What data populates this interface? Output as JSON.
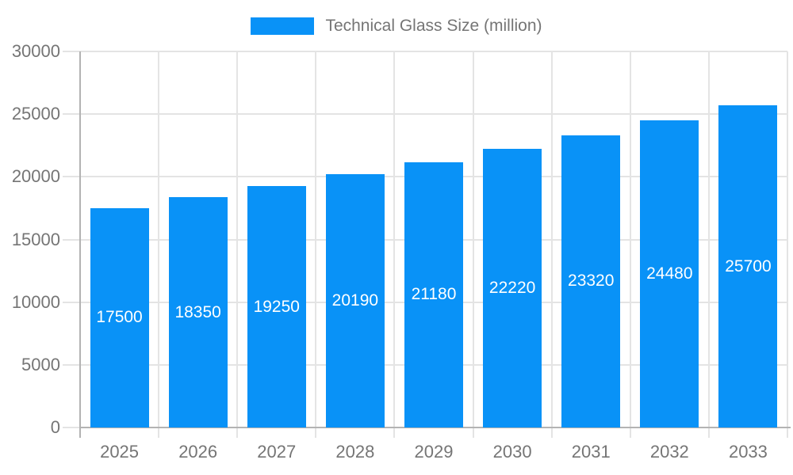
{
  "legend": {
    "label": "Technical Glass Size (million)"
  },
  "colors": {
    "bar": "#0992f7",
    "grid": "#e4e4e4",
    "axis": "#b3b3b3",
    "text": "#757575",
    "value_label": "#ffffff",
    "background": "#ffffff"
  },
  "chart_data": {
    "type": "bar",
    "title": "Technical Glass Size (million)",
    "categories": [
      "2025",
      "2026",
      "2027",
      "2028",
      "2029",
      "2030",
      "2031",
      "2032",
      "2033"
    ],
    "values": [
      17500,
      18350,
      19250,
      20190,
      21180,
      22220,
      23320,
      24480,
      25700
    ],
    "series": [
      {
        "name": "Technical Glass Size (million)",
        "values": [
          17500,
          18350,
          19250,
          20190,
          21180,
          22220,
          23320,
          24480,
          25700
        ]
      }
    ],
    "xlabel": "",
    "ylabel": "",
    "ylim": [
      0,
      30000
    ],
    "yticks": [
      0,
      5000,
      10000,
      15000,
      20000,
      25000,
      30000
    ],
    "grid": true,
    "legend_position": "top",
    "bar_value_labels": "inside-center"
  }
}
